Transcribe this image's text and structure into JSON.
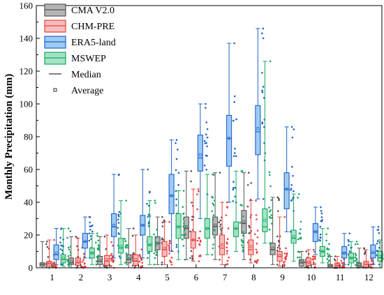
{
  "chart_data": {
    "type": "box",
    "title": "",
    "xlabel": "",
    "ylabel": "Monthly Precipitation (mm)",
    "ylim": [
      0,
      160
    ],
    "yticks": [
      0,
      20,
      40,
      60,
      80,
      100,
      120,
      140,
      160
    ],
    "categories": [
      "1",
      "2",
      "3",
      "4",
      "5",
      "6",
      "7",
      "8",
      "9",
      "10",
      "11",
      "12"
    ],
    "legend": {
      "placement": "top-left",
      "median_label": "Median",
      "average_label": "Average"
    },
    "series": [
      {
        "name": "CMA V2.0",
        "color": "#555555",
        "fill": "#b4b4b4",
        "boxes": [
          {
            "min": 0,
            "q1": 1,
            "median": 2,
            "q3": 3,
            "max": 16,
            "mean": 2.5
          },
          {
            "min": 0,
            "q1": 2,
            "median": 3,
            "q3": 6,
            "max": 19,
            "mean": 4
          },
          {
            "min": 0,
            "q1": 2,
            "median": 4,
            "q3": 7,
            "max": 19,
            "mean": 4.5
          },
          {
            "min": 0,
            "q1": 3,
            "median": 5,
            "q3": 8,
            "max": 24,
            "mean": 5.5
          },
          {
            "min": 2,
            "q1": 11,
            "median": 15,
            "q3": 19,
            "max": 31,
            "mean": 15
          },
          {
            "min": 5,
            "q1": 18,
            "median": 24,
            "q3": 31,
            "max": 59,
            "mean": 25
          },
          {
            "min": 5,
            "q1": 20,
            "median": 25,
            "q3": 31,
            "max": 58,
            "mean": 26
          },
          {
            "min": 5,
            "q1": 21,
            "median": 27,
            "q3": 35,
            "max": 58,
            "mean": 28
          },
          {
            "min": 2,
            "q1": 8,
            "median": 11,
            "q3": 15,
            "max": 43,
            "mean": 12
          },
          {
            "min": 0,
            "q1": 1,
            "median": 3,
            "q3": 5,
            "max": 10,
            "mean": 3.5
          },
          {
            "min": 0,
            "q1": 0,
            "median": 1,
            "q3": 2,
            "max": 7,
            "mean": 1.5
          },
          {
            "min": 0,
            "q1": 0.5,
            "median": 1.5,
            "q3": 3,
            "max": 12,
            "mean": 2
          }
        ]
      },
      {
        "name": "CHM-PRE",
        "color": "#e8403c",
        "fill": "#f6bcbc",
        "boxes": [
          {
            "min": 0,
            "q1": 1,
            "median": 2.5,
            "q3": 4,
            "max": 17,
            "mean": 3
          },
          {
            "min": 0,
            "q1": 1.5,
            "median": 3,
            "q3": 6,
            "max": 18,
            "mean": 4
          },
          {
            "min": 0,
            "q1": 1.5,
            "median": 4,
            "q3": 7.5,
            "max": 20,
            "mean": 5
          },
          {
            "min": 0,
            "q1": 1.5,
            "median": 4,
            "q3": 8,
            "max": 20,
            "mean": 5
          },
          {
            "min": 2,
            "q1": 7,
            "median": 11,
            "q3": 16,
            "max": 28,
            "mean": 12
          },
          {
            "min": 4,
            "q1": 12,
            "median": 17,
            "q3": 22,
            "max": 48,
            "mean": 17
          },
          {
            "min": 2,
            "q1": 8,
            "median": 12,
            "q3": 20,
            "max": 40,
            "mean": 14
          },
          {
            "min": 3,
            "q1": 8,
            "median": 11,
            "q3": 17,
            "max": 41,
            "mean": 13
          },
          {
            "min": 1,
            "q1": 4,
            "median": 7,
            "q3": 10,
            "max": 31,
            "mean": 7.5
          },
          {
            "min": 0,
            "q1": 1.5,
            "median": 3,
            "q3": 6,
            "max": 11,
            "mean": 3.5
          },
          {
            "min": 0,
            "q1": 0.5,
            "median": 1.5,
            "q3": 3,
            "max": 7,
            "mean": 2
          },
          {
            "min": 0,
            "q1": 0.5,
            "median": 2,
            "q3": 4,
            "max": 11,
            "mean": 2.5
          }
        ]
      },
      {
        "name": "ERA5-land",
        "color": "#1e63c8",
        "fill": "#9ecbf5",
        "boxes": [
          {
            "min": 2,
            "q1": 5,
            "median": 8,
            "q3": 14,
            "max": 24,
            "mean": 9
          },
          {
            "min": 6,
            "q1": 12,
            "median": 16,
            "q3": 21,
            "max": 31,
            "mean": 16
          },
          {
            "min": 6,
            "q1": 19,
            "median": 25,
            "q3": 33,
            "max": 57,
            "mean": 26
          },
          {
            "min": 6,
            "q1": 20,
            "median": 26,
            "q3": 32,
            "max": 60,
            "mean": 26
          },
          {
            "min": 10,
            "q1": 33,
            "median": 44,
            "q3": 57,
            "max": 78,
            "mean": 44
          },
          {
            "min": 30,
            "q1": 59,
            "median": 67,
            "q3": 81,
            "max": 100,
            "mean": 69
          },
          {
            "min": 40,
            "q1": 62,
            "median": 79,
            "q3": 93,
            "max": 137,
            "mean": 79
          },
          {
            "min": 42,
            "q1": 69,
            "median": 83,
            "q3": 99,
            "max": 146,
            "mean": 85
          },
          {
            "min": 22,
            "q1": 36,
            "median": 48,
            "q3": 58,
            "max": 86,
            "mean": 48
          },
          {
            "min": 8,
            "q1": 16,
            "median": 22,
            "q3": 27,
            "max": 37,
            "mean": 22
          },
          {
            "min": 2,
            "q1": 6,
            "median": 9,
            "q3": 13,
            "max": 21,
            "mean": 9
          },
          {
            "min": 2,
            "q1": 6,
            "median": 9,
            "q3": 14,
            "max": 25,
            "mean": 9.5
          }
        ]
      },
      {
        "name": "MSWEP",
        "color": "#13a860",
        "fill": "#a5e3c4",
        "boxes": [
          {
            "min": 1,
            "q1": 3,
            "median": 5,
            "q3": 8,
            "max": 24,
            "mean": 6
          },
          {
            "min": 2,
            "q1": 6,
            "median": 9,
            "q3": 12,
            "max": 21,
            "mean": 9
          },
          {
            "min": 2,
            "q1": 9,
            "median": 12,
            "q3": 18,
            "max": 41,
            "mean": 13
          },
          {
            "min": 2,
            "q1": 10,
            "median": 14,
            "q3": 19,
            "max": 41,
            "mean": 14
          },
          {
            "min": 5,
            "q1": 18,
            "median": 25,
            "q3": 33,
            "max": 47,
            "mean": 25
          },
          {
            "min": 8,
            "q1": 18,
            "median": 24,
            "q3": 30,
            "max": 57,
            "mean": 24
          },
          {
            "min": 10,
            "q1": 19,
            "median": 24,
            "q3": 28,
            "max": 59,
            "mean": 24
          },
          {
            "min": 15,
            "q1": 22,
            "median": 25,
            "q3": 36,
            "max": 126,
            "mean": 29
          },
          {
            "min": 4,
            "q1": 15,
            "median": 18,
            "q3": 23,
            "max": 45,
            "mean": 19
          },
          {
            "min": 3,
            "q1": 7,
            "median": 10,
            "q3": 13,
            "max": 24,
            "mean": 10
          },
          {
            "min": 0,
            "q1": 3,
            "median": 6,
            "q3": 9,
            "max": 16,
            "mean": 6
          },
          {
            "min": 0,
            "q1": 4,
            "median": 6,
            "q3": 10,
            "max": 17,
            "mean": 7
          }
        ]
      }
    ]
  }
}
